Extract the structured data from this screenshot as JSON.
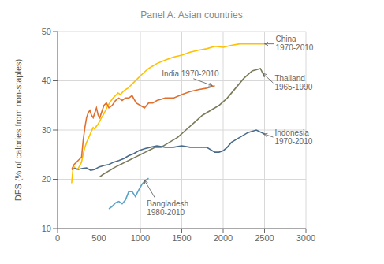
{
  "chart_data": {
    "type": "line",
    "title": "Panel A: Asian countries",
    "y_label": "DFS (% of calories from non-staples)",
    "xlim": [
      0,
      3000
    ],
    "ylim": [
      10,
      50
    ],
    "xticks": [
      0,
      500,
      1000,
      1500,
      2000,
      2500,
      3000
    ],
    "yticks": [
      10,
      20,
      30,
      40,
      50
    ],
    "grid": true,
    "series": [
      {
        "color": "#FFC000",
        "x": [
          170,
          190,
          210,
          230,
          250,
          270,
          290,
          310,
          330,
          350,
          370,
          390,
          410,
          430,
          450,
          470,
          490,
          510,
          530,
          550,
          580,
          610,
          640,
          670,
          700,
          730,
          760,
          790,
          820,
          850,
          880,
          910,
          940,
          970,
          1000,
          1050,
          1100,
          1150,
          1200,
          1300,
          1400,
          1500,
          1600,
          1700,
          1800,
          1900,
          2000,
          2100,
          2200,
          2300,
          2400,
          2500
        ],
        "values": [
          19.2,
          22.8,
          22.3,
          22.0,
          22.2,
          22.8,
          23.5,
          25.2,
          26.5,
          27.5,
          28.2,
          29.0,
          29.8,
          30.5,
          30.2,
          30.8,
          31.2,
          31.8,
          32.5,
          33.0,
          34.0,
          35.0,
          35.8,
          36.5,
          37.0,
          37.5,
          37.2,
          37.8,
          38.2,
          38.5,
          39.0,
          39.5,
          40.0,
          40.5,
          41.0,
          41.8,
          42.5,
          43.0,
          43.5,
          44.2,
          44.8,
          45.2,
          45.8,
          46.2,
          46.5,
          47.0,
          46.8,
          47.2,
          47.5,
          47.5,
          47.5,
          47.5
        ]
      },
      {
        "color": "#E07030",
        "x": [
          170,
          200,
          230,
          260,
          290,
          310,
          330,
          350,
          370,
          390,
          410,
          430,
          450,
          470,
          490,
          510,
          530,
          560,
          590,
          620,
          660,
          700,
          740,
          780,
          820,
          860,
          900,
          950,
          1000,
          1050,
          1100,
          1150,
          1200,
          1300,
          1400,
          1500,
          1600,
          1700,
          1800,
          1900
        ],
        "values": [
          22.0,
          23.0,
          23.5,
          24.0,
          24.5,
          28.0,
          30.5,
          32.5,
          33.5,
          34.0,
          33.0,
          32.5,
          33.5,
          34.5,
          33.0,
          32.5,
          33.5,
          35.0,
          35.5,
          34.5,
          35.0,
          36.0,
          36.5,
          36.0,
          36.5,
          36.5,
          37.0,
          35.5,
          35.0,
          34.5,
          35.5,
          35.5,
          36.0,
          36.5,
          36.5,
          37.2,
          37.8,
          38.2,
          38.5,
          39.0
        ]
      },
      {
        "color": "#7B7B5B",
        "x": [
          510,
          550,
          600,
          650,
          700,
          760,
          820,
          880,
          940,
          1000,
          1060,
          1120,
          1180,
          1250,
          1350,
          1450,
          1550,
          1650,
          1750,
          1850,
          1950,
          2050,
          2150,
          2250,
          2350,
          2450,
          2500
        ],
        "values": [
          20.5,
          21.0,
          21.5,
          22.0,
          22.5,
          23.0,
          23.5,
          24.0,
          24.5,
          25.0,
          25.5,
          26.0,
          26.5,
          26.5,
          27.5,
          28.5,
          30.0,
          31.5,
          33.0,
          34.0,
          35.0,
          36.5,
          38.5,
          40.5,
          42.0,
          42.5,
          40.8
        ]
      },
      {
        "color": "#4A6A8A",
        "x": [
          170,
          210,
          250,
          300,
          350,
          400,
          450,
          500,
          560,
          620,
          680,
          740,
          800,
          860,
          920,
          980,
          1050,
          1120,
          1200,
          1300,
          1400,
          1500,
          1600,
          1700,
          1800,
          1900,
          1950,
          2000,
          2050,
          2100,
          2200,
          2300,
          2400,
          2500
        ],
        "values": [
          22.0,
          22.2,
          22.0,
          22.2,
          22.3,
          21.8,
          22.0,
          22.5,
          22.8,
          23.0,
          23.5,
          23.8,
          24.2,
          24.8,
          25.2,
          25.8,
          26.2,
          26.5,
          26.8,
          26.5,
          26.5,
          26.8,
          26.5,
          26.5,
          26.5,
          25.5,
          25.5,
          25.8,
          26.5,
          27.5,
          28.5,
          29.5,
          30.0,
          29.2
        ]
      },
      {
        "color": "#5BA3C9",
        "x": [
          620,
          660,
          700,
          740,
          780,
          820,
          860,
          900,
          940,
          980,
          1020,
          1060,
          1100
        ],
        "values": [
          14.0,
          14.5,
          15.2,
          15.5,
          15.0,
          15.8,
          17.5,
          17.5,
          16.5,
          17.8,
          19.0,
          19.8,
          20.2
        ]
      }
    ],
    "annotations": [
      {
        "text": "China\n1970-2010",
        "x": 2500,
        "y": 47.5
      },
      {
        "text": "India 1970-2010",
        "x": 1870,
        "y": 39.0
      },
      {
        "text": "Thailand\n1965-1990",
        "x": 2480,
        "y": 41.5
      },
      {
        "text": "Indonesia\n1970-2010",
        "x": 2490,
        "y": 29.2
      },
      {
        "text": "Bangladesh\n1980-2010",
        "x": 1050,
        "y": 19.8
      }
    ]
  }
}
